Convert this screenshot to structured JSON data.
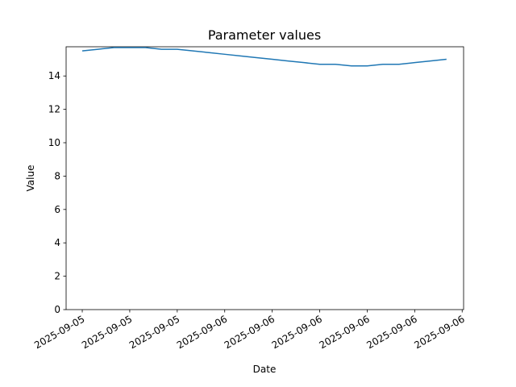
{
  "chart_data": {
    "type": "line",
    "title": "Parameter values",
    "x_label": "Date",
    "y_label": "Value",
    "x": [
      0,
      0.33,
      0.67,
      1,
      1.33,
      1.67,
      2,
      2.33,
      2.67,
      3,
      3.33,
      3.67,
      4,
      4.33,
      4.67,
      5,
      5.33,
      5.67,
      6,
      6.33,
      6.67,
      7,
      7.33,
      7.67
    ],
    "series": [
      {
        "name": "Value",
        "color": "#1f77b4",
        "values": [
          15.5,
          15.6,
          15.7,
          15.7,
          15.7,
          15.6,
          15.6,
          15.5,
          15.4,
          15.3,
          15.2,
          15.1,
          15.0,
          14.9,
          14.8,
          14.7,
          14.7,
          14.6,
          14.6,
          14.7,
          14.7,
          14.8,
          14.9,
          15.0
        ]
      }
    ],
    "xlim": [
      -0.34,
      8.03
    ],
    "xticks": [
      {
        "value": 0,
        "label": "2025-09-05"
      },
      {
        "value": 1,
        "label": "2025-09-05"
      },
      {
        "value": 2,
        "label": "2025-09-05"
      },
      {
        "value": 3,
        "label": "2025-09-06"
      },
      {
        "value": 4,
        "label": "2025-09-06"
      },
      {
        "value": 5,
        "label": "2025-09-06"
      },
      {
        "value": 6,
        "label": "2025-09-06"
      },
      {
        "value": 7,
        "label": "2025-09-06"
      },
      {
        "value": 8,
        "label": "2025-09-06"
      }
    ],
    "ylim": [
      0,
      15.75
    ],
    "yticks": [
      0,
      2,
      4,
      6,
      8,
      10,
      12,
      14
    ],
    "grid": false
  }
}
